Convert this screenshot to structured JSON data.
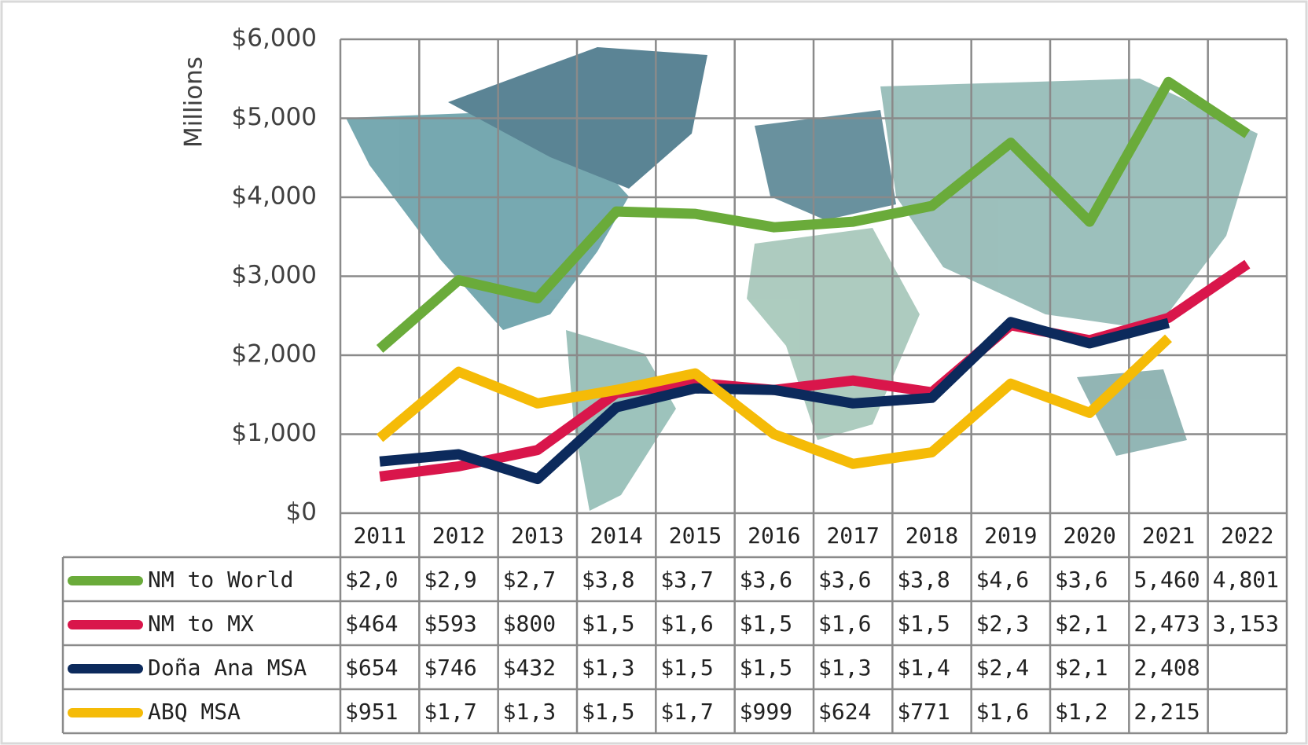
{
  "chart_data": {
    "type": "line",
    "y_axis_label": "Millions",
    "categories": [
      "2011",
      "2012",
      "2013",
      "2014",
      "2015",
      "2016",
      "2017",
      "2018",
      "2019",
      "2020",
      "2021",
      "2022"
    ],
    "ylim": [
      0,
      6000
    ],
    "yticks": [
      {
        "value": 0,
        "label": "$0"
      },
      {
        "value": 1000,
        "label": "$1,000"
      },
      {
        "value": 2000,
        "label": "$2,000"
      },
      {
        "value": 3000,
        "label": "$3,000"
      },
      {
        "value": 4000,
        "label": "$4,000"
      },
      {
        "value": 5000,
        "label": "$5,000"
      },
      {
        "value": 6000,
        "label": "$6,000"
      }
    ],
    "grid": true,
    "series": [
      {
        "name": "NM to World",
        "color": "#6aab3a",
        "values": [
          2080,
          2950,
          2720,
          3820,
          3790,
          3620,
          3690,
          3890,
          4690,
          3690,
          5460,
          4801
        ],
        "value_labels": [
          "$2,0",
          "$2,9",
          "$2,7",
          "$3,8",
          "$3,7",
          "$3,6",
          "$3,6",
          "$3,8",
          "$4,6",
          "$3,6",
          "5,460",
          "4,801"
        ]
      },
      {
        "name": "NM to MX",
        "color": "#d9164b",
        "values": [
          464,
          593,
          800,
          1520,
          1650,
          1560,
          1680,
          1530,
          2380,
          2190,
          2473,
          3153
        ],
        "value_labels": [
          "$464",
          "$593",
          "$800",
          "$1,5",
          "$1,6",
          "$1,5",
          "$1,6",
          "$1,5",
          "$2,3",
          "$2,1",
          "2,473",
          "3,153"
        ]
      },
      {
        "name": "Doña Ana MSA",
        "color": "#0c2a5c",
        "values": [
          654,
          746,
          432,
          1340,
          1580,
          1560,
          1390,
          1460,
          2420,
          2150,
          2408,
          null
        ],
        "value_labels": [
          "$654",
          "$746",
          "$432",
          "$1,3",
          "$1,5",
          "$1,5",
          "$1,3",
          "$1,4",
          "$2,4",
          "$2,1",
          "2,408",
          null
        ]
      },
      {
        "name": "ABQ MSA",
        "color": "#f5bb07",
        "values": [
          951,
          1790,
          1390,
          1560,
          1770,
          999,
          624,
          771,
          1640,
          1270,
          2215,
          null
        ],
        "value_labels": [
          "$951",
          "$1,7",
          "$1,3",
          "$1,5",
          "$1,7",
          "$999",
          "$624",
          "$771",
          "$1,6",
          "$1,2",
          "2,215",
          null
        ]
      }
    ]
  }
}
